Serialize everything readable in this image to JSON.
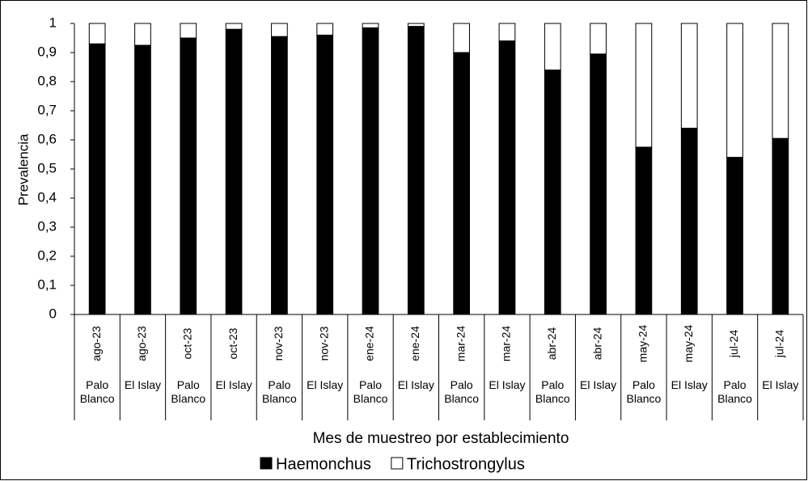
{
  "chart_data": {
    "type": "stacked_bar",
    "categories": [
      "ago-23",
      "ago-23",
      "oct-23",
      "oct-23",
      "nov-23",
      "nov-23",
      "ene-24",
      "ene-24",
      "mar-24",
      "mar-24",
      "abr-24",
      "abr-24",
      "may-24",
      "may-24",
      "jul-24",
      "jul-24"
    ],
    "groups": [
      "Palo Blanco",
      "El Islay",
      "Palo Blanco",
      "El Islay",
      "Palo Blanco",
      "El Islay",
      "Palo Blanco",
      "El Islay",
      "Palo Blanco",
      "El Islay",
      "Palo Blanco",
      "El Islay",
      "Palo Blanco",
      "El Islay",
      "Palo Blanco",
      "El Islay"
    ],
    "series": [
      {
        "name": "Haemonchus",
        "color": "#000000",
        "values": [
          0.93,
          0.925,
          0.95,
          0.98,
          0.955,
          0.96,
          0.985,
          0.99,
          0.9,
          0.94,
          0.84,
          0.895,
          0.575,
          0.64,
          0.54,
          0.605
        ]
      },
      {
        "name": "Trichostrongylus",
        "color": "#ffffff",
        "values": [
          0.07,
          0.075,
          0.05,
          0.02,
          0.045,
          0.04,
          0.015,
          0.01,
          0.1,
          0.06,
          0.16,
          0.105,
          0.425,
          0.36,
          0.46,
          0.395
        ]
      }
    ],
    "y_label": "Prevalencia",
    "x_label": "Mes de muestreo por establecimiento",
    "ylim": [
      0,
      1
    ],
    "yticks": [
      0,
      {
        "value": 0.1,
        "label": "0,1"
      },
      {
        "value": 0.2,
        "label": "0,2"
      },
      {
        "value": 0.3,
        "label": "0,3"
      },
      {
        "value": 0.4,
        "label": "0,4"
      },
      {
        "value": 0.5,
        "label": "0,5"
      },
      {
        "value": 0.6,
        "label": "0,6"
      },
      {
        "value": 0.7,
        "label": "0,7"
      },
      {
        "value": 0.8,
        "label": "0,8"
      },
      {
        "value": 0.9,
        "label": "0,9"
      },
      1
    ],
    "grid": false,
    "legend": "bottom"
  }
}
